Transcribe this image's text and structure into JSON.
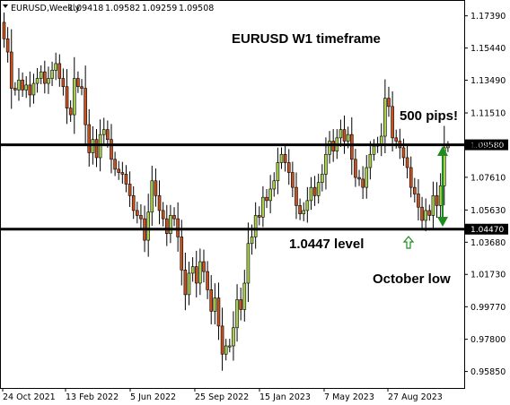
{
  "chart_data": {
    "type": "candlestick",
    "symbol": "EURUSD,Weekly",
    "ohlc_readout": [
      "1.09418",
      "1.09582",
      "1.09259",
      "1.09508"
    ],
    "title": "EURUSD W1 timeframe",
    "ylim": [
      0.9485,
      1.1835
    ],
    "y_ticks": [
      "1.17390",
      "1.15440",
      "1.13490",
      "1.11510",
      "1.09580",
      "1.07610",
      "1.05630",
      "1.03680",
      "1.01730",
      "0.99770",
      "0.97800",
      "0.95850"
    ],
    "x_ticks": [
      "24 Oct 2021",
      "13 Feb 2022",
      "5 Jun 2022",
      "25 Sep 2022",
      "15 Jan 2023",
      "7 May 2023",
      "27 Aug 2023"
    ],
    "levels": [
      {
        "value": 1.0958,
        "label": "1.09580"
      },
      {
        "value": 1.0447,
        "label": "1.04470"
      }
    ],
    "annotations": {
      "pips": "500 pips!",
      "level": "1.0447 level",
      "low": "October low"
    },
    "colors": {
      "bull": "#a9d14f",
      "bear": "#c8521f",
      "line": "#000000",
      "arrow": "#1e8c1e",
      "outline": "#000000"
    },
    "closes": [
      1.16,
      1.152,
      1.13,
      1.129,
      1.135,
      1.129,
      1.132,
      1.126,
      1.133,
      1.136,
      1.14,
      1.133,
      1.136,
      1.141,
      1.145,
      1.136,
      1.131,
      1.118,
      1.114,
      1.136,
      1.131,
      1.13,
      1.108,
      1.091,
      1.099,
      1.088,
      1.102,
      1.105,
      1.099,
      1.087,
      1.081,
      1.079,
      1.078,
      1.072,
      1.065,
      1.056,
      1.053,
      1.051,
      1.038,
      1.055,
      1.074,
      1.065,
      1.056,
      1.051,
      1.042,
      1.053,
      1.051,
      1.04,
      1.02,
      1.005,
      1.018,
      1.022,
      1.012,
      1.025,
      1.019,
      1.008,
      0.995,
      1.003,
      0.986,
      0.969,
      0.974,
      0.974,
      0.985,
      1.002,
      0.996,
      1.012,
      1.036,
      1.04,
      1.053,
      1.052,
      1.064,
      1.062,
      1.069,
      1.074,
      1.085,
      1.09,
      1.085,
      1.079,
      1.07,
      1.059,
      1.054,
      1.056,
      1.062,
      1.07,
      1.065,
      1.073,
      1.078,
      1.09,
      1.098,
      1.092,
      1.1,
      1.105,
      1.098,
      1.102,
      1.087,
      1.076,
      1.075,
      1.07,
      1.082,
      1.09,
      1.095,
      1.096,
      1.101,
      1.124,
      1.119,
      1.1,
      1.098,
      1.094,
      1.088,
      1.082,
      1.07,
      1.066,
      1.058,
      1.05,
      1.056,
      1.053,
      1.065,
      1.059,
      1.071,
      1.094,
      1.0951
    ]
  }
}
